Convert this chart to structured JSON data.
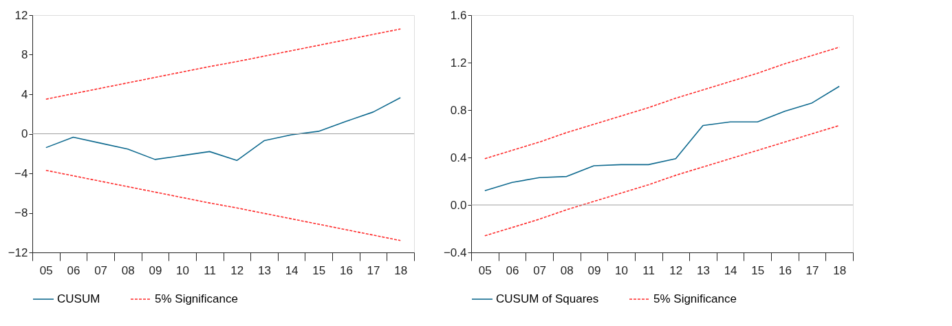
{
  "chart_data": [
    {
      "type": "line",
      "categories": [
        "05",
        "06",
        "07",
        "08",
        "09",
        "10",
        "11",
        "12",
        "13",
        "14",
        "15",
        "16",
        "17",
        "18"
      ],
      "ylim": [
        -12,
        12
      ],
      "yticks": [
        -12,
        -8,
        -4,
        0,
        4,
        8,
        12
      ],
      "grid": false,
      "legend": "bottom",
      "marker": "none",
      "ref_lines": [
        {
          "axis": "y",
          "value": 0,
          "color": "#a0a0a0"
        }
      ],
      "series": [
        {
          "name": "CUSUM",
          "color": "#0f6a8f",
          "line_style": "solid",
          "values": [
            -1.4,
            -0.35,
            -0.95,
            -1.55,
            -2.6,
            -2.2,
            -1.8,
            -2.7,
            -0.7,
            -0.1,
            0.25,
            1.25,
            2.2,
            3.65
          ]
        },
        {
          "name": "5% Significance",
          "color": "#ff2a2a",
          "line_style": "dashed",
          "values": [
            3.5,
            4.05,
            4.6,
            5.15,
            5.7,
            6.25,
            6.8,
            7.3,
            7.85,
            8.4,
            8.95,
            9.5,
            10.05,
            10.6
          ]
        },
        {
          "name": "5% Significance",
          "color": "#ff2a2a",
          "line_style": "dashed",
          "values": [
            -3.7,
            -4.25,
            -4.8,
            -5.35,
            -5.9,
            -6.45,
            -7.0,
            -7.5,
            -8.05,
            -8.6,
            -9.15,
            -9.7,
            -10.25,
            -10.8
          ]
        }
      ]
    },
    {
      "type": "line",
      "categories": [
        "05",
        "06",
        "07",
        "08",
        "09",
        "10",
        "11",
        "12",
        "13",
        "14",
        "15",
        "16",
        "17",
        "18"
      ],
      "ylim": [
        -0.4,
        1.6
      ],
      "yticks": [
        {
          "value": -0.4,
          "label": "−0.4"
        },
        {
          "value": 0,
          "label": "0.0"
        },
        {
          "value": 0.4,
          "label": "0.4"
        },
        {
          "value": 0.8,
          "label": "0.8"
        },
        {
          "value": 1.2,
          "label": "1.2"
        },
        {
          "value": 1.6,
          "label": "1.6"
        }
      ],
      "grid": false,
      "legend": "bottom",
      "marker": "none",
      "ref_lines": [
        {
          "axis": "y",
          "value": 0,
          "color": "#a0a0a0"
        }
      ],
      "series": [
        {
          "name": "CUSUM of Squares",
          "color": "#0f6a8f",
          "line_style": "solid",
          "values": [
            0.12,
            0.19,
            0.23,
            0.24,
            0.33,
            0.34,
            0.34,
            0.39,
            0.67,
            0.7,
            0.7,
            0.79,
            0.86,
            1.0
          ]
        },
        {
          "name": "5% Significance",
          "color": "#ff2a2a",
          "line_style": "dashed",
          "values": [
            0.39,
            0.46,
            0.53,
            0.61,
            0.68,
            0.75,
            0.82,
            0.9,
            0.97,
            1.04,
            1.11,
            1.19,
            1.26,
            1.33
          ]
        },
        {
          "name": "5% Significance",
          "color": "#ff2a2a",
          "line_style": "dashed",
          "values": [
            -0.26,
            -0.19,
            -0.12,
            -0.04,
            0.03,
            0.1,
            0.17,
            0.25,
            0.32,
            0.39,
            0.46,
            0.53,
            0.6,
            0.67
          ]
        }
      ]
    }
  ]
}
